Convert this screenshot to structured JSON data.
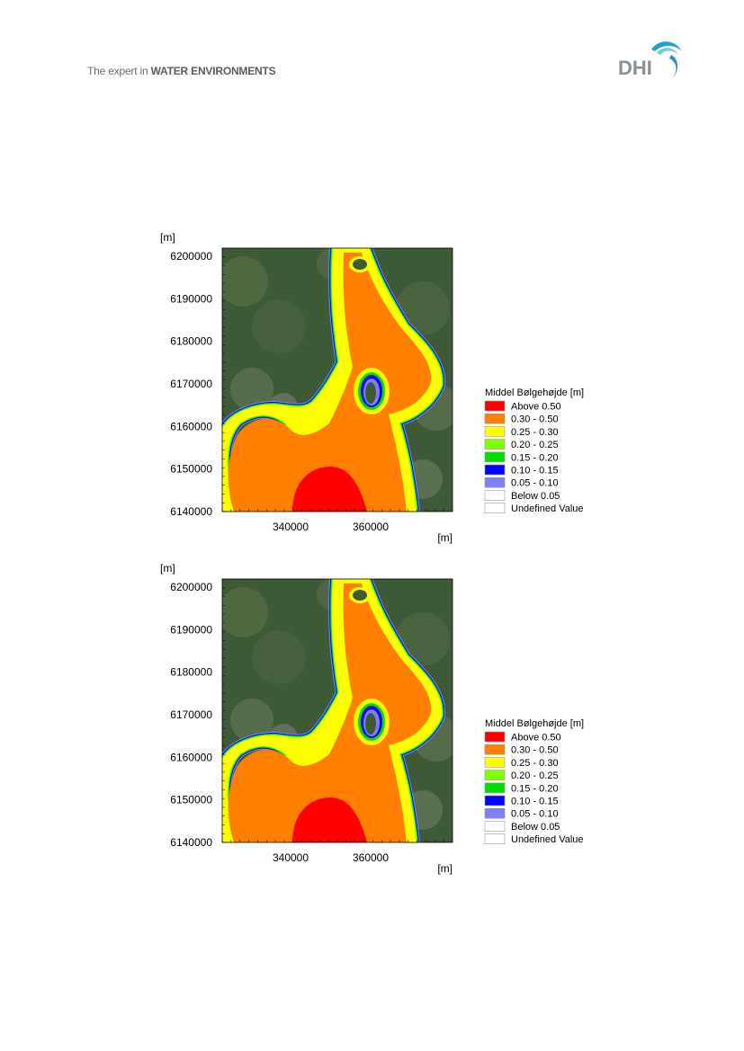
{
  "header": {
    "tagline_prefix": "The expert in ",
    "tagline_bold": "WATER ENVIRONMENTS",
    "logo_text": "DHI"
  },
  "colors": {
    "above_050": "#ff0000",
    "r030_050": "#ff8000",
    "r025_030": "#ffff00",
    "r020_025": "#80ff00",
    "r015_020": "#00e000",
    "r010_015": "#0000ff",
    "r005_010": "#8080ff",
    "land": "#3f5a36"
  },
  "figures": [
    {
      "y_unit": "[m]",
      "x_unit": "[m]",
      "y_ticks": [
        "6200000",
        "6190000",
        "6180000",
        "6170000",
        "6160000",
        "6150000",
        "6140000"
      ],
      "x_ticks": [
        "340000",
        "360000"
      ],
      "legend_title": "Middel Bølgehøjde [m]",
      "legend": [
        {
          "label": "Above 0.50",
          "color": "#ff0000"
        },
        {
          "label": "0.30 - 0.50",
          "color": "#ff8000"
        },
        {
          "label": "0.25 - 0.30",
          "color": "#ffff00"
        },
        {
          "label": "0.20 - 0.25",
          "color": "#80ff00"
        },
        {
          "label": "0.15 - 0.20",
          "color": "#00e000"
        },
        {
          "label": "0.10 - 0.15",
          "color": "#0000ff"
        },
        {
          "label": "0.05 - 0.10",
          "color": "#8080ff"
        },
        {
          "label": "Below 0.05",
          "color": "#ffffff"
        },
        {
          "label": "Undefined Value",
          "color": "#ffffff"
        }
      ]
    },
    {
      "y_unit": "[m]",
      "x_unit": "[m]",
      "y_ticks": [
        "6200000",
        "6190000",
        "6180000",
        "6170000",
        "6160000",
        "6150000",
        "6140000"
      ],
      "x_ticks": [
        "340000",
        "360000"
      ],
      "legend_title": "Middel Bølgehøjde [m]",
      "legend": [
        {
          "label": "Above 0.50",
          "color": "#ff0000"
        },
        {
          "label": "0.30 - 0.50",
          "color": "#ff8000"
        },
        {
          "label": "0.25 - 0.30",
          "color": "#ffff00"
        },
        {
          "label": "0.20 - 0.25",
          "color": "#80ff00"
        },
        {
          "label": "0.15 - 0.20",
          "color": "#00e000"
        },
        {
          "label": "0.10 - 0.15",
          "color": "#0000ff"
        },
        {
          "label": "0.05 - 0.10",
          "color": "#8080ff"
        },
        {
          "label": "Below 0.05",
          "color": "#ffffff"
        },
        {
          "label": "Undefined Value",
          "color": "#ffffff"
        }
      ]
    }
  ]
}
